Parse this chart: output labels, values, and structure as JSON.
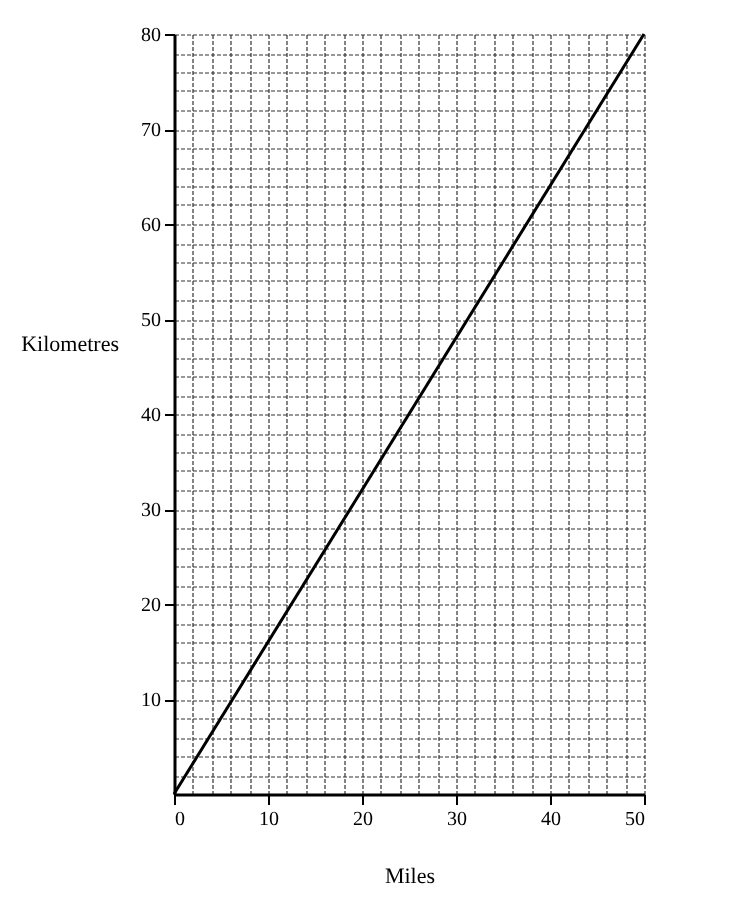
{
  "chart_data": {
    "type": "line",
    "xlabel": "Miles",
    "ylabel": "Kilometres",
    "x": [
      0,
      50
    ],
    "series": [
      {
        "color": "#000000",
        "values": [
          0,
          80
        ]
      }
    ],
    "xlim": [
      0,
      50
    ],
    "ylim": [
      0,
      80
    ],
    "xticks": [
      0,
      10,
      20,
      30,
      40,
      50
    ],
    "yticks": [
      10,
      20,
      30,
      40,
      50,
      60,
      70,
      80
    ],
    "grid": true,
    "marker": "none",
    "line_style": "solid"
  }
}
